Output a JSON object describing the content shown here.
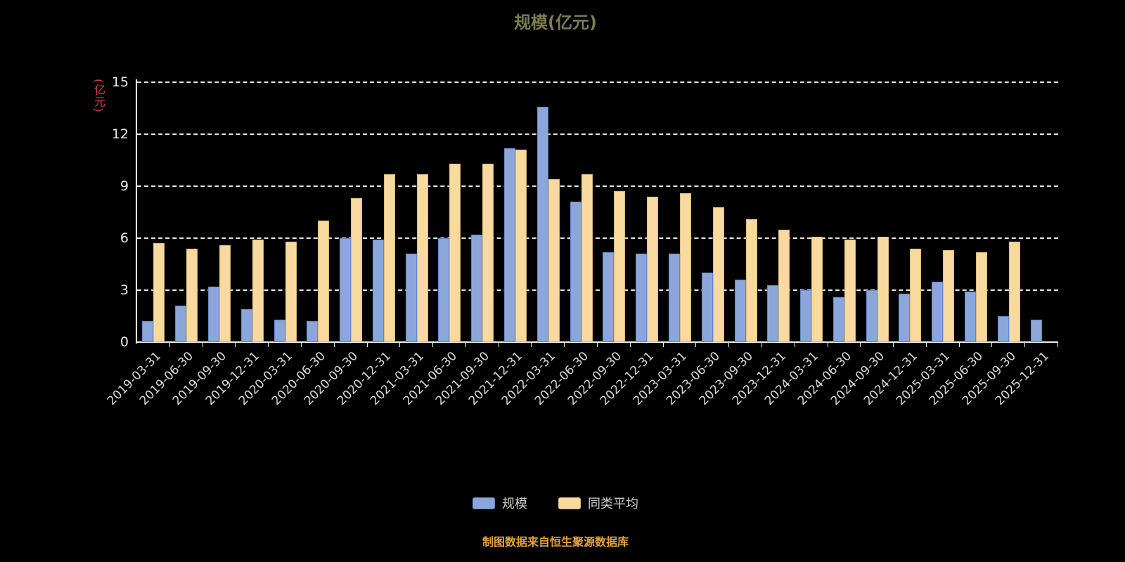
{
  "chart_data": {
    "type": "bar",
    "title": "规模(亿元)",
    "ylabel": "(亿元)",
    "ylim": [
      0,
      15
    ],
    "yticks": [
      0,
      3,
      6,
      9,
      12,
      15
    ],
    "grid": "horizontal-dashed",
    "legend_position": "bottom",
    "categories": [
      "2019-03-31",
      "2019-06-30",
      "2019-09-30",
      "2019-12-31",
      "2020-03-31",
      "2020-06-30",
      "2020-09-30",
      "2020-12-31",
      "2021-03-31",
      "2021-06-30",
      "2021-09-30",
      "2021-12-31",
      "2022-03-31",
      "2022-06-30",
      "2022-09-30",
      "2022-12-31",
      "2023-03-31",
      "2023-06-30",
      "2023-09-30",
      "2023-12-31",
      "2024-03-31",
      "2024-06-30",
      "2024-09-30",
      "2024-12-31",
      "2025-03-31",
      "2025-06-30",
      "2025-09-30",
      "2025-12-31"
    ],
    "series": [
      {
        "id": "scale",
        "name": "规模",
        "color": "#8ba7d9",
        "border": "#6286c5",
        "values": [
          1.2,
          2.1,
          3.2,
          1.9,
          1.3,
          1.2,
          6.0,
          5.9,
          5.1,
          6.0,
          6.2,
          11.2,
          13.6,
          8.1,
          5.2,
          5.1,
          5.1,
          4.0,
          3.6,
          3.3,
          3.0,
          2.6,
          3.0,
          2.8,
          3.5,
          2.9,
          1.5,
          1.3
        ]
      },
      {
        "id": "peer-average",
        "name": "同类平均",
        "color": "#f8d9a0",
        "border": "#dcb876",
        "values": [
          5.7,
          5.4,
          5.6,
          5.9,
          5.8,
          7.0,
          8.3,
          9.7,
          9.7,
          10.3,
          10.3,
          11.1,
          9.4,
          9.7,
          8.7,
          8.4,
          8.6,
          7.8,
          7.1,
          6.5,
          6.1,
          5.9,
          6.1,
          5.4,
          5.3,
          5.2,
          5.8,
          null
        ]
      }
    ]
  },
  "footer": {
    "source_note": "制图数据来自恒生聚源数据库"
  },
  "colors": {
    "background": "#000000",
    "title": "#7c7c54",
    "axis": "#ededed",
    "gridline": "#ffffff",
    "y_tick_label": "#ededed",
    "x_tick_label": "#d9d9d9",
    "ylabel": "#d64040",
    "legend_text": "#cccccc",
    "footer": "#e2a23c",
    "bar_scale": "#8ba7d9",
    "bar_peer_average": "#f8d9a0"
  }
}
